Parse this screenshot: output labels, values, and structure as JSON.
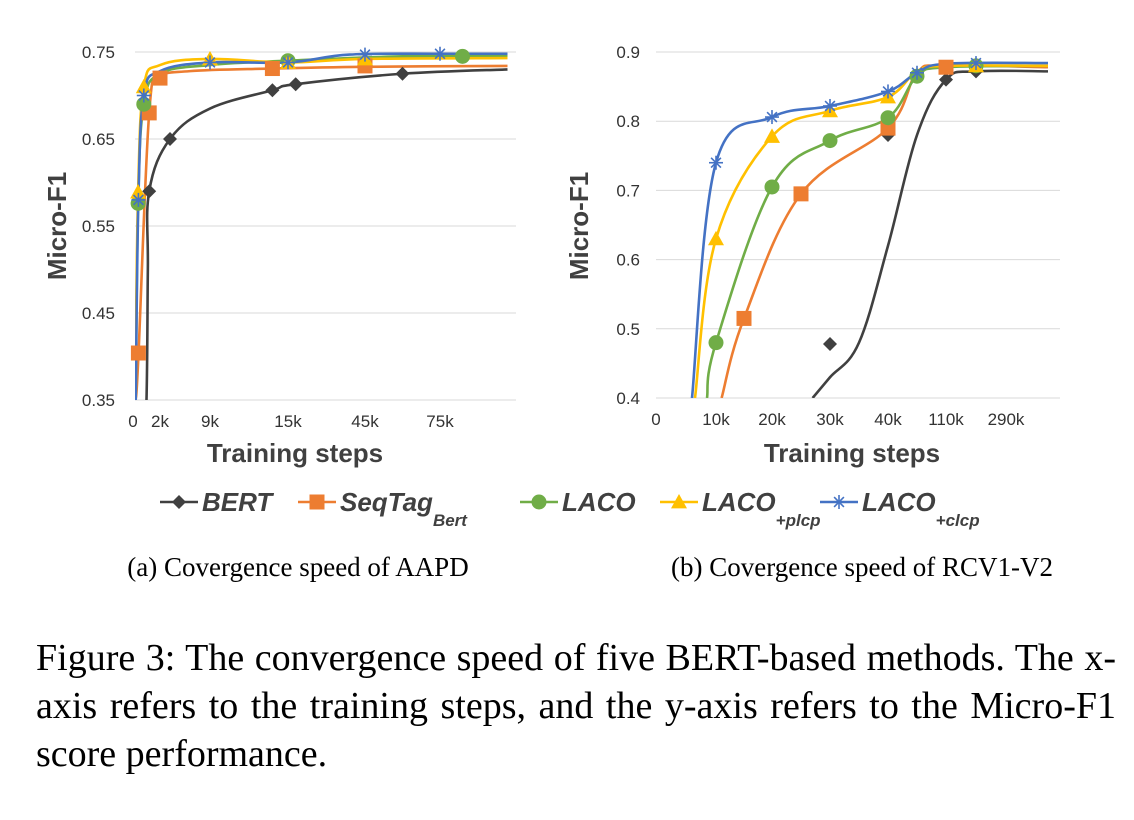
{
  "legend": [
    {
      "label": "BERT",
      "sub": ""
    },
    {
      "label": "SeqTag",
      "sub": "Bert"
    },
    {
      "label": "LACO",
      "sub": ""
    },
    {
      "label": "LACO",
      "sub": "+plcp"
    },
    {
      "label": "LACO",
      "sub": "+clcp"
    }
  ],
  "colors": {
    "BERT": "#404040",
    "SeqTag": "#ED7D31",
    "LACO": "#70AD47",
    "LACO_plcp": "#FFC000",
    "LACO_clcp": "#4472C4"
  },
  "markers": [
    "diamond",
    "square",
    "circle",
    "triangle",
    "star"
  ],
  "chart_data": [
    {
      "type": "line",
      "subcaption": "(a) Covergence speed of AAPD",
      "xlabel": "Training steps",
      "ylabel": "Micro-F1",
      "x_tick_labels": [
        "0",
        "2k",
        "9k",
        "15k",
        "45k",
        "75k"
      ],
      "y_tick_labels": [
        "0.35",
        "0.45",
        "0.55",
        "0.65",
        "0.75"
      ],
      "ylim": [
        0.35,
        0.75
      ],
      "grid": true,
      "series": [
        {
          "name": "BERT",
          "points": [
            [
              0.33,
              0.2
            ],
            [
              0.5,
              0.35
            ],
            [
              0.55,
              0.5
            ],
            [
              0.6,
              0.59
            ],
            [
              1.2,
              0.65
            ],
            [
              2.0,
              0.685
            ],
            [
              2.8,
              0.706
            ],
            [
              3.1,
              0.713
            ],
            [
              4.5,
              0.725
            ],
            [
              5.9,
              0.73
            ]
          ]
        },
        {
          "name": "SeqTag_Bert",
          "points": [
            [
              0.1,
              0.35
            ],
            [
              0.2,
              0.4
            ],
            [
              0.6,
              0.68
            ],
            [
              1.0,
              0.72
            ],
            [
              1.6,
              0.728
            ],
            [
              2.8,
              0.731
            ],
            [
              4.0,
              0.733
            ],
            [
              5.9,
              0.734
            ]
          ]
        },
        {
          "name": "LACO",
          "points": [
            [
              0.1,
              0.35
            ],
            [
              0.19,
              0.576
            ],
            [
              0.4,
              0.69
            ],
            [
              1.0,
              0.725
            ],
            [
              2.0,
              0.735
            ],
            [
              3.0,
              0.74
            ],
            [
              4.5,
              0.745
            ],
            [
              5.9,
              0.745
            ]
          ]
        },
        {
          "name": "LACO_plcp",
          "points": [
            [
              0.08,
              0.35
            ],
            [
              0.19,
              0.59
            ],
            [
              0.4,
              0.71
            ],
            [
              1.0,
              0.735
            ],
            [
              2.0,
              0.742
            ],
            [
              3.0,
              0.738
            ],
            [
              4.0,
              0.742
            ],
            [
              5.9,
              0.743
            ]
          ]
        },
        {
          "name": "LACO_clcp",
          "points": [
            [
              0.1,
              0.35
            ],
            [
              0.2,
              0.58
            ],
            [
              0.4,
              0.7
            ],
            [
              1.0,
              0.728
            ],
            [
              2.0,
              0.738
            ],
            [
              3.0,
              0.738
            ],
            [
              3.8,
              0.747
            ],
            [
              5.0,
              0.748
            ],
            [
              5.9,
              0.748
            ]
          ]
        }
      ]
    },
    {
      "type": "line",
      "subcaption": "(b) Covergence speed of RCV1-V2",
      "xlabel": "Training steps",
      "ylabel": "Micro-F1",
      "x_tick_labels": [
        "0",
        "10k",
        "20k",
        "30k",
        "40k",
        "110k",
        "290k"
      ],
      "y_tick_labels": [
        "0.4",
        "0.5",
        "0.6",
        "0.7",
        "0.8",
        "0.9"
      ],
      "ylim": [
        0.4,
        0.9
      ],
      "grid": true,
      "series": [
        {
          "name": "BERT",
          "points": [
            [
              2.7,
              0.4
            ],
            [
              3.0,
              0.43
            ],
            [
              3.5,
              0.48
            ],
            [
              4.0,
              0.62
            ],
            [
              4.5,
              0.78
            ],
            [
              5.0,
              0.86
            ],
            [
              5.5,
              0.872
            ],
            [
              6.7,
              0.872
            ]
          ]
        },
        {
          "name": "SeqTag_Bert",
          "points": [
            [
              1.1,
              0.4
            ],
            [
              1.5,
              0.515
            ],
            [
              2.5,
              0.695
            ],
            [
              4.0,
              0.79
            ],
            [
              4.5,
              0.87
            ],
            [
              5.0,
              0.88
            ],
            [
              6.7,
              0.878
            ]
          ]
        },
        {
          "name": "LACO",
          "points": [
            [
              0.85,
              0.4
            ],
            [
              1.0,
              0.48
            ],
            [
              2.0,
              0.705
            ],
            [
              3.0,
              0.772
            ],
            [
              4.0,
              0.805
            ],
            [
              4.5,
              0.865
            ],
            [
              5.0,
              0.878
            ],
            [
              6.7,
              0.88
            ]
          ]
        },
        {
          "name": "LACO_plcp",
          "points": [
            [
              0.65,
              0.4
            ],
            [
              1.0,
              0.63
            ],
            [
              2.0,
              0.778
            ],
            [
              3.0,
              0.815
            ],
            [
              4.0,
              0.835
            ],
            [
              4.5,
              0.872
            ],
            [
              5.0,
              0.88
            ],
            [
              6.7,
              0.88
            ]
          ]
        },
        {
          "name": "LACO_clcp",
          "points": [
            [
              0.6,
              0.4
            ],
            [
              1.0,
              0.74
            ],
            [
              2.0,
              0.806
            ],
            [
              3.0,
              0.822
            ],
            [
              4.0,
              0.843
            ],
            [
              4.5,
              0.87
            ],
            [
              5.0,
              0.883
            ],
            [
              6.7,
              0.884
            ]
          ]
        }
      ]
    }
  ],
  "figure_caption": "Figure 3: The convergence speed of five BERT-based methods. The x-axis refers to the training steps, and the y-axis refers to the Micro-F1 score performance."
}
